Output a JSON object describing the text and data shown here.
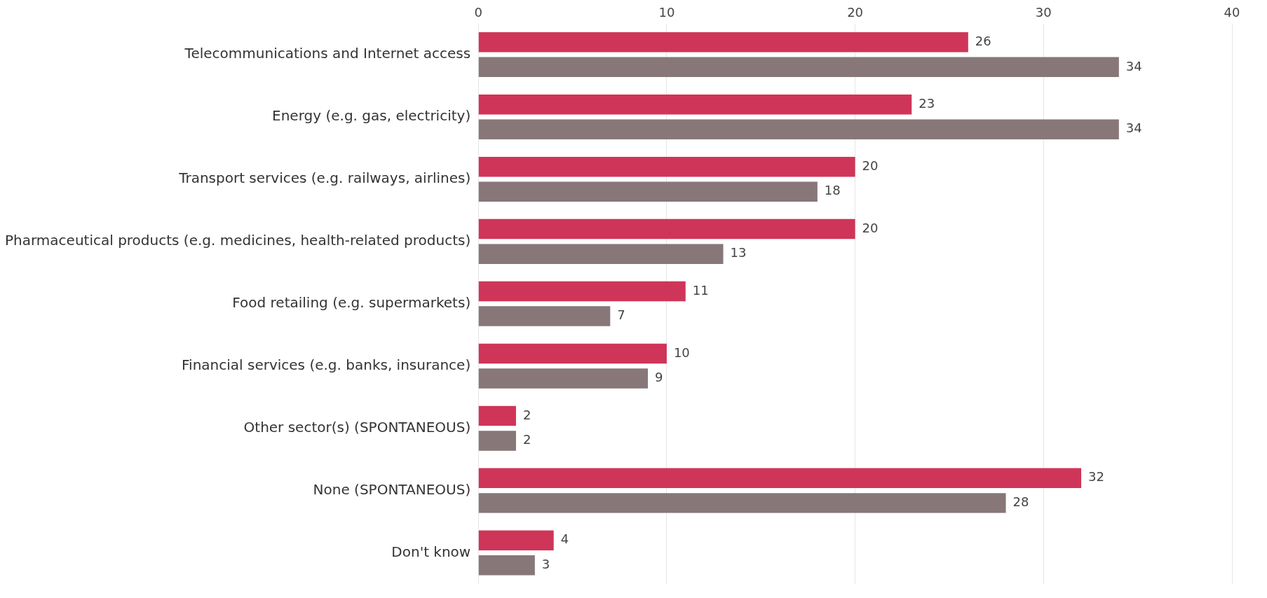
{
  "chart_data": {
    "type": "bar",
    "orientation": "horizontal",
    "categories": [
      "Telecommunications and Internet access",
      "Energy (e.g. gas, electricity)",
      "Transport services (e.g. railways, airlines)",
      "Pharmaceutical products (e.g. medicines, health-related products)",
      "Food retailing (e.g. supermarkets)",
      "Financial services (e.g. banks, insurance)",
      "Other sector(s) (SPONTANEOUS)",
      "None (SPONTANEOUS)",
      "Don't know"
    ],
    "series": [
      {
        "color": "#cf3558",
        "values": [
          26,
          23,
          20,
          20,
          11,
          10,
          2,
          32,
          4
        ]
      },
      {
        "color": "#877779",
        "values": [
          34,
          34,
          18,
          13,
          7,
          9,
          2,
          28,
          3
        ]
      }
    ],
    "xlim": [
      0,
      40
    ],
    "xticks": [
      0,
      10,
      20,
      30,
      40
    ],
    "grid": "x",
    "legend": false,
    "data_labels": true
  }
}
